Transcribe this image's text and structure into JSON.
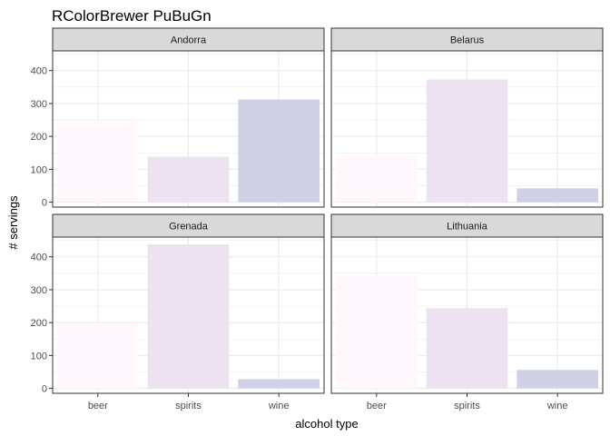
{
  "chart_data": {
    "type": "bar",
    "title": "RColorBrewer PuBuGn",
    "xlabel": "alcohol type",
    "ylabel": "# servings",
    "categories": [
      "beer",
      "spirits",
      "wine"
    ],
    "ylim": [
      -15,
      460
    ],
    "yticks": [
      0,
      100,
      200,
      300,
      400
    ],
    "grid": true,
    "facets": [
      {
        "name": "Andorra",
        "values": [
          245,
          138,
          312
        ]
      },
      {
        "name": "Belarus",
        "values": [
          142,
          373,
          42
        ]
      },
      {
        "name": "Grenada",
        "values": [
          199,
          438,
          28
        ]
      },
      {
        "name": "Lithuania",
        "values": [
          343,
          244,
          56
        ]
      }
    ],
    "colors": {
      "beer": "#fff7fb",
      "spirits": "#ece2f0",
      "wine": "#d0d1e6",
      "strip_fill": "#d9d9d9",
      "panel_border": "#333333",
      "grid": "#ebebeb"
    }
  }
}
